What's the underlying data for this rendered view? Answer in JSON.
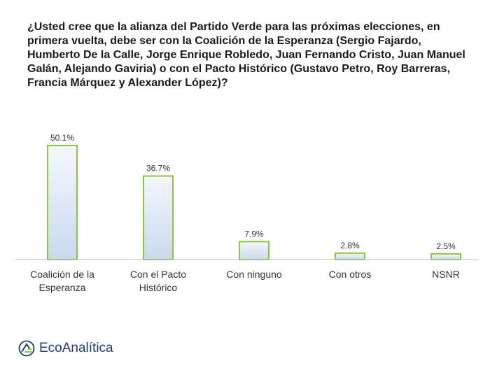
{
  "question": "¿Usted cree que la alianza del Partido Verde para las próximas elecciones, en primera vuelta, debe ser con la Coalición de la Esperanza (Sergio Fajardo, Humberto De la Calle, Jorge Enrique Robledo, Juan Fernando Cristo, Juan Manuel Galán, Alejando Gaviria) o con el Pacto Histórico (Gustavo Petro, Roy Barreras, Francia Márquez y Alexander López)?",
  "brand": {
    "name": "EcoAnalítica",
    "logo_icon": "ecoanalitica-logo-icon",
    "color": "#1f3f6e"
  },
  "chart_data": {
    "type": "bar",
    "categories": [
      [
        "Coalición de la",
        "Esperanza"
      ],
      [
        "Con el Pacto",
        "Histórico"
      ],
      [
        "Con ninguno"
      ],
      [
        "Con otros"
      ],
      [
        "NSNR"
      ]
    ],
    "values": [
      50.1,
      36.7,
      7.9,
      2.8,
      2.5
    ],
    "value_labels": [
      "50.1%",
      "36.7%",
      "7.9%",
      "2.8%",
      "2.5%"
    ],
    "unit": "%",
    "ylim": [
      0,
      50.1
    ],
    "grid": false,
    "legend": "none",
    "colors": {
      "bar_fill_top": "#f4f8fd",
      "bar_fill_bottom": "#c9d9ee",
      "bar_border": "#8cc63f",
      "axis": "#bfbfbf"
    }
  }
}
